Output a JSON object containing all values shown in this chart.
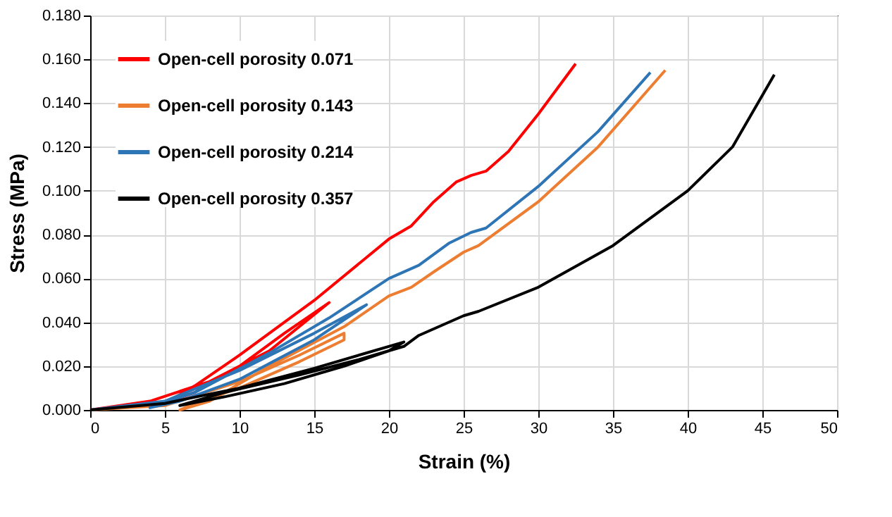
{
  "chart_data": {
    "type": "line",
    "xlabel": "Strain (%)",
    "ylabel": "Stress (MPa)",
    "xlim": [
      0,
      50
    ],
    "xticks": [
      0,
      5,
      10,
      15,
      20,
      25,
      30,
      35,
      40,
      45,
      50
    ],
    "ylim": [
      0,
      0.18
    ],
    "yticks": [
      {
        "value": 0,
        "label": "0.000"
      },
      {
        "value": 0.02,
        "label": "0.020"
      },
      {
        "value": 0.04,
        "label": "0.040"
      },
      {
        "value": 0.06,
        "label": "0.060"
      },
      {
        "value": 0.08,
        "label": "0.080"
      },
      {
        "value": 0.1,
        "label": "0.100"
      },
      {
        "value": 0.12,
        "label": "0.120"
      },
      {
        "value": 0.14,
        "label": "0.140"
      },
      {
        "value": 0.16,
        "label": "0.160"
      },
      {
        "value": 0.18,
        "label": "0.180"
      }
    ],
    "grid": true,
    "legend": "top left",
    "marker": "none",
    "line_style": "solid",
    "series": [
      {
        "name": "Open-cell porosity 0.071",
        "color": "#ff0000",
        "x": [
          0,
          4,
          8,
          12,
          16,
          13,
          10,
          7,
          5,
          7,
          10,
          15,
          20,
          21.5,
          23,
          24.5,
          25.5,
          26.5,
          28,
          30,
          32.5
        ],
        "values": [
          0,
          0.004,
          0.013,
          0.027,
          0.049,
          0.035,
          0.02,
          0.008,
          0.003,
          0.011,
          0.025,
          0.05,
          0.078,
          0.084,
          0.095,
          0.104,
          0.107,
          0.109,
          0.118,
          0.135,
          0.158
        ]
      },
      {
        "name": "Open-cell porosity 0.143",
        "color": "#ed7d31",
        "x": [
          0,
          5,
          10,
          14,
          17,
          17,
          14,
          10,
          7,
          6,
          8,
          12,
          17,
          20,
          21.5,
          23,
          25,
          26,
          30,
          34,
          38.5
        ],
        "values": [
          0,
          0.002,
          0.013,
          0.025,
          0.035,
          0.032,
          0.022,
          0.01,
          0.003,
          0,
          0.004,
          0.02,
          0.038,
          0.052,
          0.056,
          0.063,
          0.072,
          0.075,
          0.095,
          0.12,
          0.155
        ]
      },
      {
        "name": "Open-cell porosity 0.214",
        "color": "#2e75b6",
        "x": [
          0,
          5,
          10,
          15,
          18.5,
          15,
          10,
          6,
          4,
          7,
          12,
          16,
          20,
          22,
          24,
          25.5,
          26.5,
          30,
          34,
          37.5
        ],
        "values": [
          0,
          0.004,
          0.018,
          0.035,
          0.048,
          0.032,
          0.014,
          0.004,
          0.001,
          0.008,
          0.026,
          0.042,
          0.06,
          0.066,
          0.076,
          0.081,
          0.083,
          0.102,
          0.127,
          0.154
        ]
      },
      {
        "name": "Open-cell porosity 0.357",
        "color": "#000000",
        "x": [
          0,
          5,
          10,
          15,
          21,
          20,
          17,
          13,
          9,
          6,
          9,
          14,
          18,
          21,
          22,
          25,
          26,
          30,
          35,
          40,
          43,
          45.8
        ],
        "values": [
          0,
          0.003,
          0.01,
          0.019,
          0.031,
          0.027,
          0.02,
          0.012,
          0.006,
          0.002,
          0.008,
          0.016,
          0.023,
          0.029,
          0.034,
          0.043,
          0.045,
          0.056,
          0.075,
          0.1,
          0.12,
          0.153
        ]
      }
    ]
  }
}
